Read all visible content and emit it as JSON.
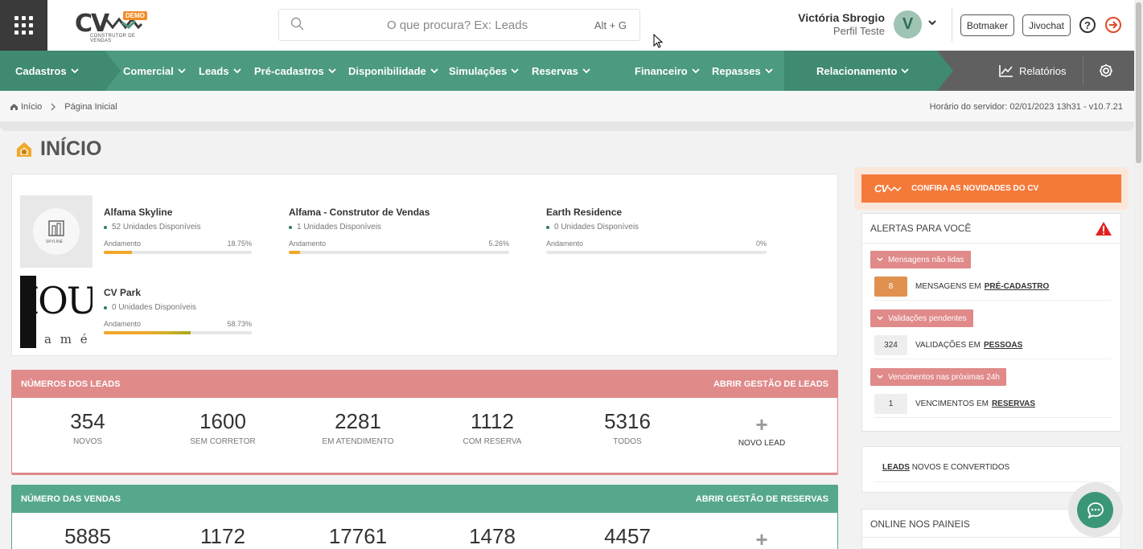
{
  "header": {
    "logo_text": "CV",
    "logo_badge": "DEMO",
    "logo_sub": "CONSTRUTOR DE VENDAS",
    "search_placeholder": "O que procura? Ex: Leads",
    "search_shortcut": "Alt + G",
    "user_name": "Victória Sbrogio",
    "user_role": "Perfil Teste",
    "avatar_letter": "V",
    "botmaker": "Botmaker",
    "jivochat": "Jivochat"
  },
  "nav": {
    "items": [
      "Cadastros",
      "Comercial",
      "Leads",
      "Pré-cadastros",
      "Disponibilidade",
      "Simulações",
      "Reservas",
      "Financeiro",
      "Repasses",
      "Relacionamento"
    ],
    "reports": "Relatórios"
  },
  "breadcrumb": {
    "home": "Início",
    "current": "Página Inicial",
    "server_time": "Horário do servidor: 02/01/2023 13h31 - v10.7.21"
  },
  "page_title": "INÍCIO",
  "projects": [
    {
      "name": "Alfama Skyline",
      "units": "52 Unidades Disponíveis",
      "progress_label": "Andamento",
      "progress": "18.75%",
      "progress_value": 0.1875
    },
    {
      "name": "Alfama - Construtor de Vendas",
      "units": "1 Unidades Disponíveis",
      "progress_label": "Andamento",
      "progress": "5.26%",
      "progress_value": 0.0526
    },
    {
      "name": "Earth Residence",
      "units": "0 Unidades Disponíveis",
      "progress_label": "Andamento",
      "progress": "0%",
      "progress_value": 0
    },
    {
      "name": "CV Park",
      "units": "0 Unidades Disponíveis",
      "progress_label": "Andamento",
      "progress": "58.73%",
      "progress_value": 0.5873
    }
  ],
  "project_thumbs": {
    "skyline_text": "SKYLINE",
    "park_text": "IOU",
    "park_sub": "a m é"
  },
  "leads_panel": {
    "title": "NÚMEROS DOS LEADS",
    "link": "ABRIR GESTÃO DE LEADS",
    "stats": [
      {
        "value": "354",
        "label": "NOVOS"
      },
      {
        "value": "1600",
        "label": "SEM CORRETOR"
      },
      {
        "value": "2281",
        "label": "EM ATENDIMENTO"
      },
      {
        "value": "1112",
        "label": "COM RESERVA"
      },
      {
        "value": "5316",
        "label": "TODOS"
      }
    ],
    "plus_symbol": "+",
    "new_label": "NOVO LEAD",
    "color": "#e08a8a"
  },
  "sales_panel": {
    "title": "NÚMERO DAS VENDAS",
    "link": "ABRIR GESTÃO DE RESERVAS",
    "stats": [
      {
        "value": "5885"
      },
      {
        "value": "1172"
      },
      {
        "value": "17761"
      },
      {
        "value": "1478"
      },
      {
        "value": "4457"
      }
    ],
    "plus_symbol": "+",
    "color": "#56a88c"
  },
  "news": {
    "label": "CONFIRA AS NOVIDADES DO CV",
    "logo": "CV"
  },
  "alerts": {
    "title": "ALERTAS PARA VOCÊ",
    "groups": [
      {
        "tag": "Mensagens não lidas",
        "count": "8",
        "text": "MENSAGENS EM",
        "link": "PRÉ-CADASTRO"
      },
      {
        "tag": "Validações pendentes",
        "count": "324",
        "text": "VALIDAÇÕES EM",
        "link": "PESSOAS"
      },
      {
        "tag": "Vencimentos nas próximas 24h",
        "count": "1",
        "text": "VENCIMENTOS EM",
        "link": "RESERVAS"
      }
    ]
  },
  "leads_box": {
    "link": "LEADS",
    "text": "NOVOS E CONVERTIDOS"
  },
  "online_box": {
    "title": "ONLINE NOS PAINEIS"
  },
  "colors": {
    "green": "#4c9a80",
    "dark": "#606060",
    "orange": "#f47a3a",
    "red_alert": "#e08a8a"
  }
}
